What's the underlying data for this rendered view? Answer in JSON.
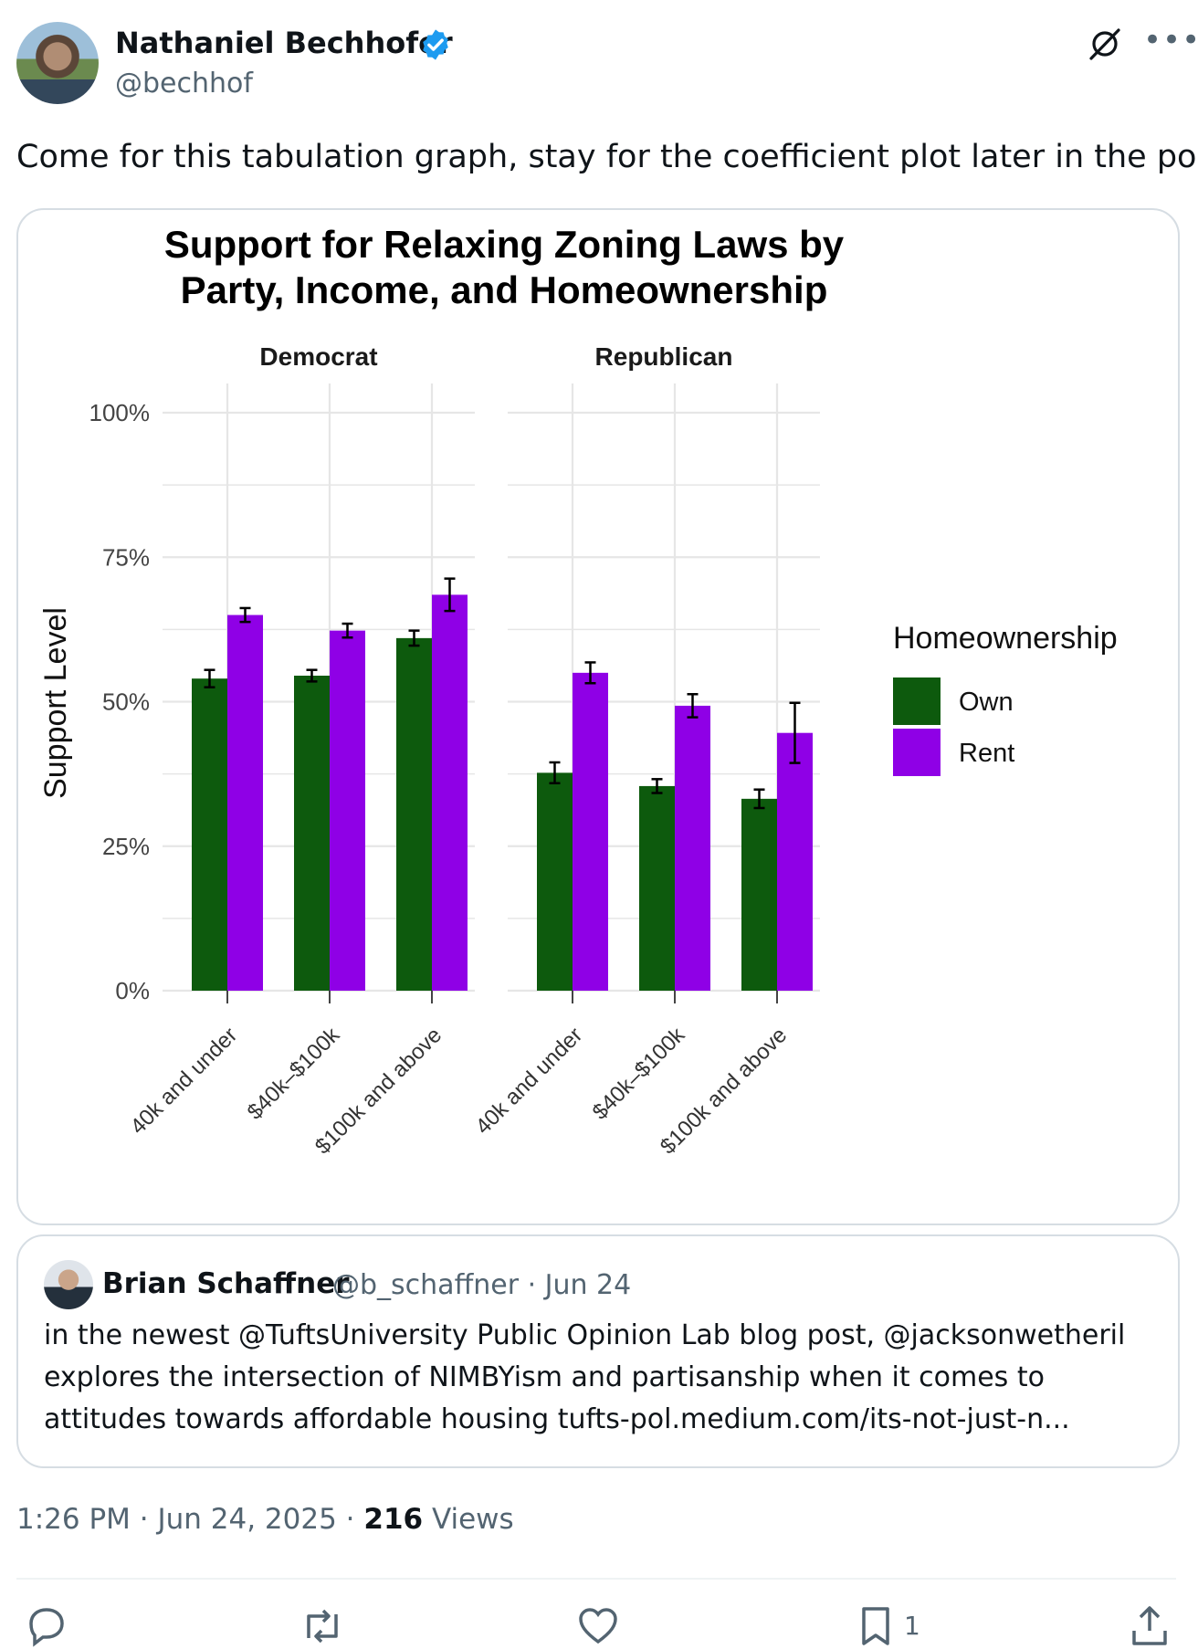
{
  "author": {
    "name": "Nathaniel Bechhofer",
    "handle": "@bechhof"
  },
  "tweet": {
    "text": "Come for this tabulation graph, stay for the coefficient plot later in the post"
  },
  "colors": {
    "own": "#0d5a0d",
    "rent": "#8f00e6",
    "verified": "#1d9bf0",
    "muted": "#536471"
  },
  "chart_data": {
    "type": "bar",
    "title_lines": [
      "Support for Relaxing Zoning Laws by",
      "Party, Income, and Homeownership"
    ],
    "ylabel": "Support Level",
    "xlabel": "",
    "ylim": [
      0,
      100
    ],
    "y_ticks": [
      "0%",
      "25%",
      "50%",
      "75%",
      "100%"
    ],
    "grid": true,
    "legend": {
      "title": "Homeownership",
      "placement": "right",
      "entries": [
        "Own",
        "Rent"
      ]
    },
    "panels": [
      {
        "name": "Democrat",
        "categories": [
          "40k and under",
          "$40k–$100k",
          "$100k and above"
        ],
        "series": [
          {
            "name": "Own",
            "values": [
              54,
              54.5,
              61
            ],
            "error": [
              1.5,
              1.0,
              1.3
            ]
          },
          {
            "name": "Rent",
            "values": [
              65,
              62.3,
              68.5
            ],
            "error": [
              1.2,
              1.2,
              2.8
            ]
          }
        ]
      },
      {
        "name": "Republican",
        "categories": [
          "40k and under",
          "$40k–$100k",
          "$100k and above"
        ],
        "series": [
          {
            "name": "Own",
            "values": [
              37.7,
              35.4,
              33.2
            ],
            "error": [
              1.8,
              1.2,
              1.6
            ]
          },
          {
            "name": "Rent",
            "values": [
              55,
              49.3,
              44.6
            ],
            "error": [
              1.8,
              2.0,
              5.2
            ]
          }
        ]
      }
    ]
  },
  "quote": {
    "name": "Brian Schaffner",
    "handle_date": "@b_schaffner · Jun 24",
    "lines": [
      "in the newest @TuftsUniversity Public Opinion Lab blog post, @jacksonwetheril",
      "explores the intersection of NIMBYism and partisanship when it comes to",
      "attitudes towards affordable housing tufts-pol.medium.com/its-not-just-n..."
    ]
  },
  "footer": {
    "time": "1:26 PM · Jun 24, 2025 · ",
    "views_count": "216",
    "views_label": " Views",
    "bookmarks_count": "1"
  }
}
